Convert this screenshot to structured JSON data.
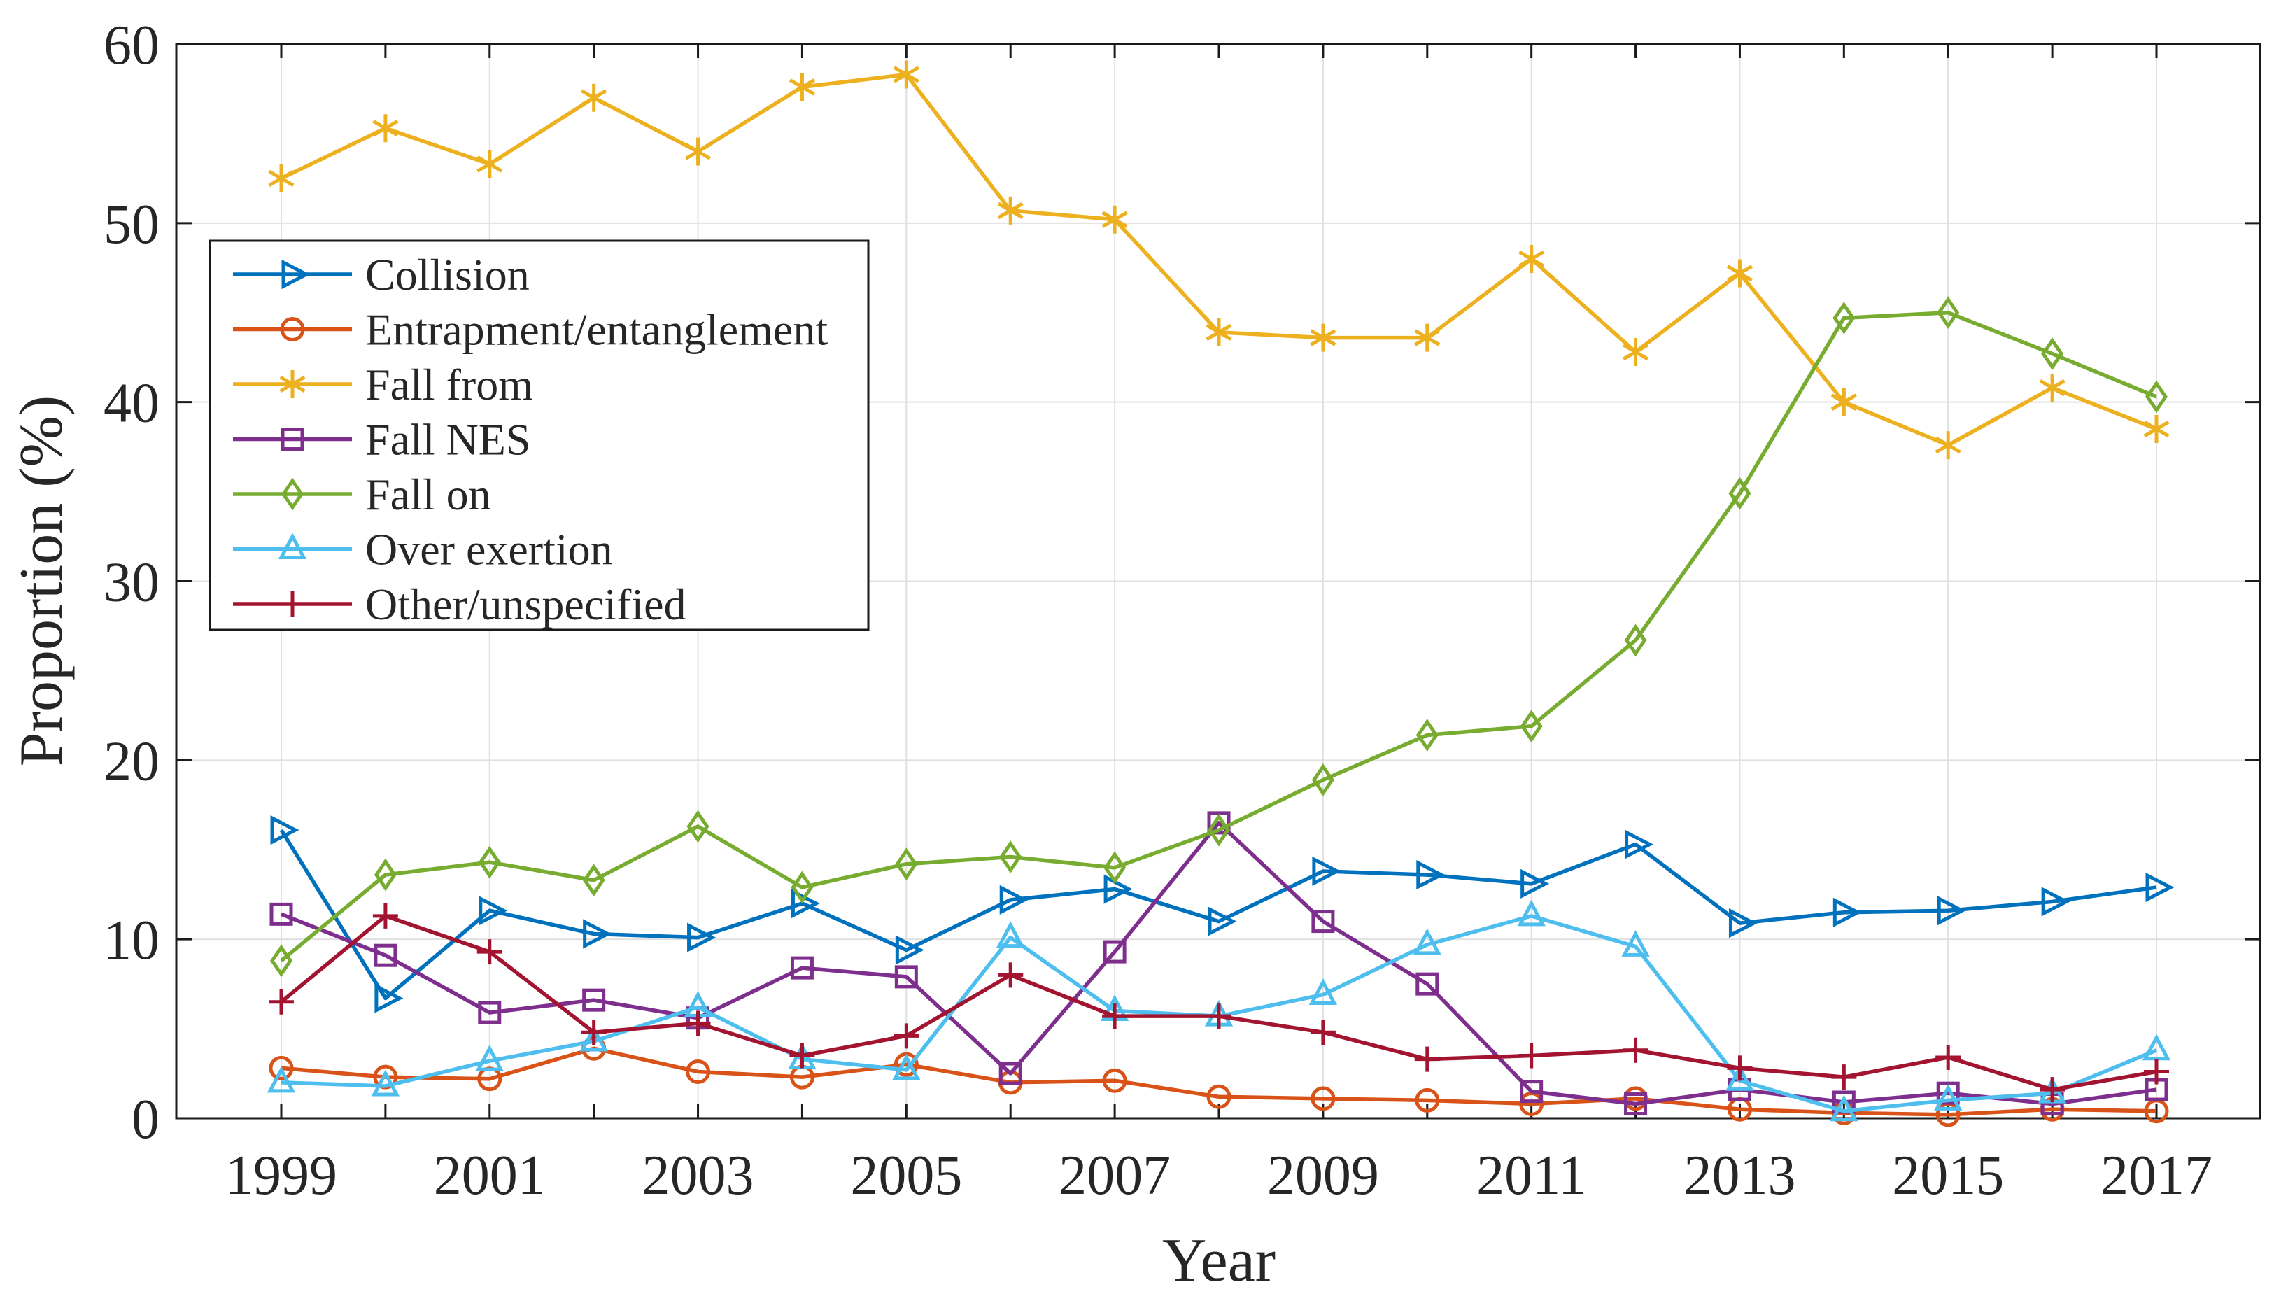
{
  "figure": {
    "background": "#ffffff",
    "axes_color": "#1a1a1a",
    "grid_color": "#e0e0e0",
    "text_color": "#262626"
  },
  "chart_data": {
    "type": "line",
    "title": "",
    "xlabel": "Year",
    "ylabel": "Proportion (%)",
    "x": [
      1999,
      2000,
      2001,
      2002,
      2003,
      2004,
      2005,
      2006,
      2007,
      2008,
      2009,
      2010,
      2011,
      2012,
      2013,
      2014,
      2015,
      2016,
      2017
    ],
    "x_tick_labels": [
      "1999",
      "2001",
      "2003",
      "2005",
      "2007",
      "2009",
      "2011",
      "2013",
      "2015",
      "2017"
    ],
    "x_tick_years": [
      1999,
      2001,
      2003,
      2005,
      2007,
      2009,
      2011,
      2013,
      2015,
      2017
    ],
    "y_ticks": [
      0,
      10,
      20,
      30,
      40,
      50,
      60
    ],
    "ylim": [
      0,
      60
    ],
    "xlim_years": [
      1999,
      2017
    ],
    "grid": true,
    "legend_position": "upper-left",
    "series": [
      {
        "name": "Collision",
        "slug": "collision",
        "color": "#0072BD",
        "marker": "triangle-right",
        "values": [
          16.1,
          6.7,
          11.6,
          10.3,
          10.1,
          12.0,
          9.4,
          12.2,
          12.8,
          11.0,
          13.8,
          13.6,
          13.1,
          15.3,
          10.9,
          11.5,
          11.6,
          12.1,
          12.9
        ]
      },
      {
        "name": "Entrapment/entanglement",
        "slug": "entrapment-entanglement",
        "color": "#D95319",
        "marker": "circle",
        "values": [
          2.8,
          2.3,
          2.2,
          3.9,
          2.6,
          2.3,
          3.0,
          2.0,
          2.1,
          1.2,
          1.1,
          1.0,
          0.8,
          1.1,
          0.5,
          0.3,
          0.2,
          0.5,
          0.4
        ]
      },
      {
        "name": "Fall from",
        "slug": "fall-from",
        "color": "#EDB120",
        "marker": "asterisk",
        "values": [
          52.5,
          55.3,
          53.3,
          57.0,
          54.0,
          57.6,
          58.3,
          50.7,
          50.2,
          43.9,
          43.6,
          43.6,
          48.0,
          42.8,
          47.2,
          40.0,
          37.6,
          40.8,
          38.5
        ]
      },
      {
        "name": "Fall NES",
        "slug": "fall-nes",
        "color": "#7E2F8E",
        "marker": "square",
        "values": [
          11.4,
          9.1,
          5.9,
          6.6,
          5.6,
          8.4,
          7.9,
          2.5,
          9.3,
          16.5,
          11.0,
          7.5,
          1.5,
          0.8,
          1.6,
          0.9,
          1.4,
          0.8,
          1.6
        ]
      },
      {
        "name": "Fall on",
        "slug": "fall-on",
        "color": "#77AC30",
        "marker": "diamond",
        "values": [
          8.8,
          13.6,
          14.3,
          13.3,
          16.3,
          12.9,
          14.2,
          14.6,
          14.0,
          16.1,
          18.9,
          21.4,
          21.9,
          26.7,
          34.9,
          44.7,
          45.0,
          42.7,
          40.3
        ]
      },
      {
        "name": "Over exertion",
        "slug": "over-exertion",
        "color": "#4DBEEE",
        "marker": "triangle-up",
        "values": [
          2.0,
          1.8,
          3.2,
          4.3,
          6.2,
          3.3,
          2.7,
          10.1,
          6.0,
          5.7,
          6.9,
          9.7,
          11.3,
          9.6,
          2.1,
          0.4,
          1.0,
          1.4,
          3.8
        ]
      },
      {
        "name": "Other/unspecified",
        "slug": "other-unspecified",
        "color": "#A2142F",
        "marker": "plus",
        "values": [
          6.5,
          11.3,
          9.3,
          4.8,
          5.3,
          3.5,
          4.6,
          8.0,
          5.7,
          5.7,
          4.8,
          3.3,
          3.5,
          3.8,
          2.8,
          2.3,
          3.4,
          1.6,
          2.6
        ]
      }
    ]
  }
}
